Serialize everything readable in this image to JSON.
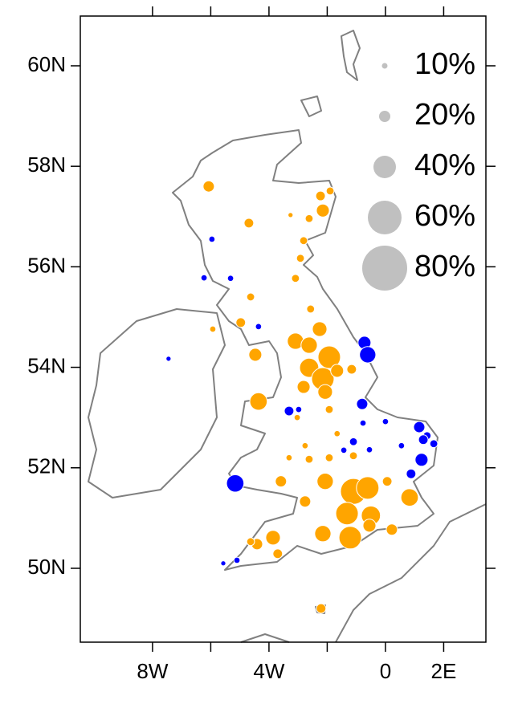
{
  "chart_data": {
    "type": "scatter",
    "xlim": [
      -10.48,
      3.45
    ],
    "ylim": [
      48.53,
      60.99
    ],
    "xticks": [
      {
        "value": -8,
        "label": "8W"
      },
      {
        "value": -4,
        "label": "4W"
      },
      0,
      {
        "value": 2,
        "label": "2E"
      }
    ],
    "xticks_minor": [
      -6,
      -2
    ],
    "yticks": [
      {
        "value": 50,
        "label": "50N"
      },
      {
        "value": 52,
        "label": "52N"
      },
      {
        "value": 54,
        "label": "54N"
      },
      {
        "value": 56,
        "label": "56N"
      },
      {
        "value": 58,
        "label": "58N"
      },
      {
        "value": 60,
        "label": "60N"
      }
    ],
    "series": [
      {
        "color": "#ffa500",
        "x": [
          -6.07,
          -4.69,
          -2.23,
          -1.9,
          -2.15,
          -2.62,
          -3.26,
          -2.81,
          -2.92,
          -3.09,
          -2.57,
          -4.63,
          -4.97,
          -4.47,
          -3.09,
          -2.62,
          -2.26,
          -1.93,
          -2.62,
          -2.15,
          -1.66,
          -2.81,
          -2.07,
          -4.36,
          -1.93,
          -1.16,
          -2.62,
          -1.93,
          -1.1,
          -3.59,
          -2.76,
          -2.07,
          -1.1,
          -0.61,
          -1.32,
          -0.5,
          0.06,
          0.83,
          -2.15,
          -1.21,
          -0.55,
          0.22,
          -3.86,
          -4.41,
          -3.7,
          -4.63,
          -2.21,
          -3.03,
          -3.31,
          -2.76,
          -1.66,
          -5.93
        ],
        "y": [
          57.6,
          56.87,
          57.41,
          57.51,
          57.12,
          56.96,
          57.03,
          56.52,
          56.17,
          55.77,
          55.16,
          55.4,
          54.89,
          54.25,
          54.52,
          54.44,
          54.76,
          54.2,
          53.99,
          53.77,
          53.93,
          53.61,
          53.51,
          53.32,
          53.16,
          53.96,
          52.17,
          52.2,
          52.24,
          51.73,
          51.33,
          51.73,
          51.53,
          51.6,
          51.09,
          51.05,
          51.73,
          51.41,
          50.69,
          50.61,
          50.85,
          50.77,
          50.61,
          50.48,
          50.29,
          50.53,
          49.2,
          53.0,
          52.2,
          52.44,
          52.68,
          54.76
        ],
        "sizes": [
          20,
          17,
          17,
          14,
          23,
          14,
          9,
          14,
          14,
          14,
          14,
          14,
          17,
          23,
          29,
          29,
          26,
          40,
          34,
          40,
          23,
          23,
          26,
          31,
          14,
          17,
          14,
          14,
          14,
          20,
          20,
          29,
          46,
          40,
          40,
          34,
          17,
          31,
          29,
          40,
          23,
          20,
          26,
          20,
          17,
          14,
          17,
          11,
          11,
          11,
          11,
          11
        ]
      },
      {
        "color": "#0000ff",
        "x": [
          -5.96,
          -6.23,
          -5.32,
          -4.36,
          -7.45,
          -0.72,
          -0.61,
          -0.8,
          -3.31,
          -2.98,
          -0.77,
          0.0,
          1.16,
          1.43,
          1.3,
          1.66,
          1.24,
          0.88,
          -5.16,
          -5.1,
          -5.57,
          -1.1,
          -0.55,
          -1.43,
          0.55
        ],
        "y": [
          56.55,
          55.78,
          55.77,
          54.81,
          54.17,
          54.49,
          54.25,
          53.27,
          53.13,
          53.16,
          52.89,
          52.92,
          52.81,
          52.64,
          52.56,
          52.48,
          52.16,
          51.88,
          51.69,
          50.16,
          50.1,
          52.52,
          52.36,
          52.35,
          52.44
        ],
        "sizes": [
          11,
          11,
          11,
          11,
          9,
          23,
          29,
          20,
          17,
          11,
          11,
          11,
          20,
          14,
          17,
          14,
          23,
          17,
          31,
          11,
          9,
          14,
          11,
          11,
          11
        ]
      }
    ],
    "size_legend": [
      {
        "value": 10,
        "label": "10%"
      },
      {
        "value": 20,
        "label": "20%"
      },
      {
        "value": 40,
        "label": "40%"
      },
      {
        "value": 60,
        "label": "60%"
      },
      {
        "value": 80,
        "label": "80%"
      }
    ],
    "size_legend_color": "#c0c0c0"
  }
}
